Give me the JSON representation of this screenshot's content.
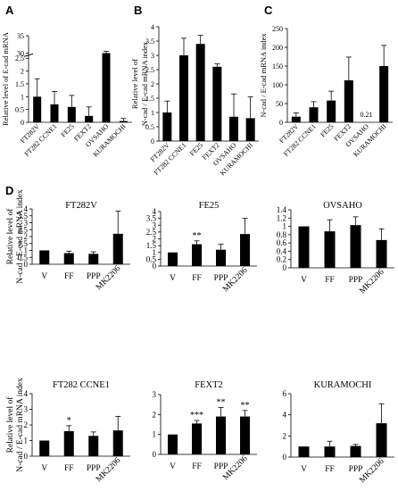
{
  "panel_labels": [
    "A",
    "B",
    "C",
    "D"
  ],
  "chart_data": [
    {
      "id": "A",
      "type": "bar",
      "title": "",
      "ylabel": "Relative level of E-cad mRNA",
      "categories": [
        "FT282V",
        "FT282 CCNE1",
        "FE25",
        "FEXT2",
        "OVSAHO",
        "KURAMOCHI"
      ],
      "values": [
        1.0,
        0.7,
        0.6,
        0.25,
        29.5,
        0.05
      ],
      "errors": [
        0.7,
        0.5,
        0.45,
        0.35,
        1.0,
        0.1
      ],
      "ylim": [
        0,
        35
      ],
      "yticks": [
        0,
        0.5,
        1,
        1.5,
        2,
        2.5,
        30,
        35
      ],
      "tick_labels": [
        "0",
        "0.5",
        "1",
        "1.5",
        "2",
        "2.5",
        "30",
        "35"
      ],
      "axis_break": {
        "from": 2.5,
        "to": 30
      },
      "annotations": [],
      "grid": false
    },
    {
      "id": "B",
      "type": "bar",
      "title": "",
      "ylabel": "Relative level of N-cad mRNA",
      "categories": [
        "FT282V",
        "FT282 CCNE1",
        "FE25",
        "FEXT2",
        "OVSAHO",
        "KURAMOCHI"
      ],
      "values": [
        1.0,
        3.0,
        3.4,
        2.6,
        0.85,
        0.8
      ],
      "errors": [
        0.4,
        0.6,
        0.3,
        0.1,
        0.8,
        0.75
      ],
      "ylim": [
        0,
        4
      ],
      "yticks": [
        0,
        0.5,
        1,
        1.5,
        2,
        2.5,
        3,
        3.5,
        4
      ],
      "tick_labels": [
        "0",
        "0.5",
        "1",
        "1.5",
        "2",
        "2.5",
        "3",
        "3.5",
        "4"
      ],
      "annotations": [],
      "grid": false
    },
    {
      "id": "C",
      "type": "bar",
      "title": "",
      "ylabel": "N-cad / E-cad mRNA index",
      "categories": [
        "FT282V",
        "FT282 CCNE1",
        "FE25",
        "FEXT2",
        "OVSAHO",
        "KURAMOCHI"
      ],
      "values": [
        15,
        40,
        58,
        112,
        0.21,
        150
      ],
      "errors": [
        10,
        15,
        25,
        62,
        0,
        55
      ],
      "ylim": [
        0,
        250
      ],
      "yticks": [
        0,
        50,
        100,
        150,
        200,
        250
      ],
      "tick_labels": [
        "0",
        "50",
        "100",
        "150",
        "200",
        "250"
      ],
      "annotations": [
        {
          "category": "OVSAHO",
          "text": "0.21"
        }
      ],
      "grid": false
    },
    {
      "id": "D1",
      "type": "bar",
      "title": "FT282V",
      "ylabel": "Relative level of N-cad / E-cad mRNA index",
      "categories": [
        "V",
        "FF",
        "PPP",
        "MK2206"
      ],
      "values": [
        1.0,
        0.8,
        0.75,
        2.2
      ],
      "errors": [
        0,
        0.15,
        0.15,
        1.65
      ],
      "ylim": [
        0,
        4
      ],
      "yticks": [
        0,
        0.5,
        1,
        1.5,
        2,
        2.5,
        3,
        3.5,
        4
      ],
      "tick_labels": [
        "0",
        "0.5",
        "1",
        "1.5",
        "2",
        "2.5",
        "3",
        "3.5",
        "4"
      ],
      "significance": [
        "",
        "",
        "",
        ""
      ],
      "grid": false
    },
    {
      "id": "D2",
      "type": "bar",
      "title": "FE25",
      "ylabel": "",
      "categories": [
        "V",
        "FF",
        "PPP",
        "MK2206"
      ],
      "values": [
        1.0,
        1.6,
        1.2,
        2.35
      ],
      "errors": [
        0,
        0.25,
        0.4,
        1.15
      ],
      "ylim": [
        0,
        4
      ],
      "yticks": [
        0,
        0.5,
        1,
        1.5,
        2,
        2.5,
        3,
        3.5,
        4
      ],
      "tick_labels": [
        "0",
        "0.5",
        "1",
        "1.5",
        "2",
        "2.5",
        "3",
        "3.5",
        "4"
      ],
      "significance": [
        "",
        "**",
        "",
        ""
      ],
      "grid": false
    },
    {
      "id": "D3",
      "type": "bar",
      "title": "OVSAHO",
      "ylabel": "",
      "categories": [
        "V",
        "FF",
        "PPP",
        "MK2206"
      ],
      "values": [
        1.0,
        0.88,
        1.03,
        0.67
      ],
      "errors": [
        0,
        0.28,
        0.2,
        0.27
      ],
      "ylim": [
        0,
        1.4
      ],
      "yticks": [
        0,
        0.2,
        0.4,
        0.6,
        0.8,
        1,
        1.2,
        1.4
      ],
      "tick_labels": [
        "0",
        "0.2",
        "0.4",
        "0.6",
        "0.8",
        "1",
        "1.2",
        "1.4"
      ],
      "significance": [
        "",
        "",
        "",
        ""
      ],
      "grid": false
    },
    {
      "id": "D4",
      "type": "bar",
      "title": "FT282 CCNE1",
      "ylabel": "Relative level of N-cad / E-cad mRNA index",
      "categories": [
        "V",
        "FF",
        "PPP",
        "MK2206"
      ],
      "values": [
        1.0,
        1.6,
        1.3,
        1.65
      ],
      "errors": [
        0,
        0.35,
        0.25,
        0.9
      ],
      "ylim": [
        0,
        4
      ],
      "yticks": [
        0,
        1,
        2,
        3,
        4
      ],
      "tick_labels": [
        "0",
        "1",
        "2",
        "3",
        "4"
      ],
      "significance": [
        "",
        "*",
        "",
        ""
      ],
      "grid": false
    },
    {
      "id": "D5",
      "type": "bar",
      "title": "FEXT2",
      "ylabel": "",
      "categories": [
        "V",
        "FF",
        "PPP",
        "MK2206"
      ],
      "values": [
        1.0,
        1.55,
        1.9,
        1.9
      ],
      "errors": [
        0,
        0.15,
        0.45,
        0.3
      ],
      "ylim": [
        0,
        3
      ],
      "yticks": [
        0,
        1,
        2,
        3
      ],
      "tick_labels": [
        "0",
        "1",
        "2",
        "3"
      ],
      "significance": [
        "",
        "***",
        "**",
        "**"
      ],
      "grid": false
    },
    {
      "id": "D6",
      "type": "bar",
      "title": "KURAMOCHI",
      "ylabel": "",
      "categories": [
        "V",
        "FF",
        "PPP",
        "MK2206"
      ],
      "values": [
        1.0,
        1.0,
        1.05,
        3.2
      ],
      "errors": [
        0,
        0.5,
        0.15,
        1.85
      ],
      "ylim": [
        0,
        6
      ],
      "yticks": [
        0,
        2,
        4,
        6
      ],
      "tick_labels": [
        "0",
        "2",
        "4",
        "6"
      ],
      "significance": [
        "",
        "",
        "",
        ""
      ],
      "grid": false
    }
  ]
}
